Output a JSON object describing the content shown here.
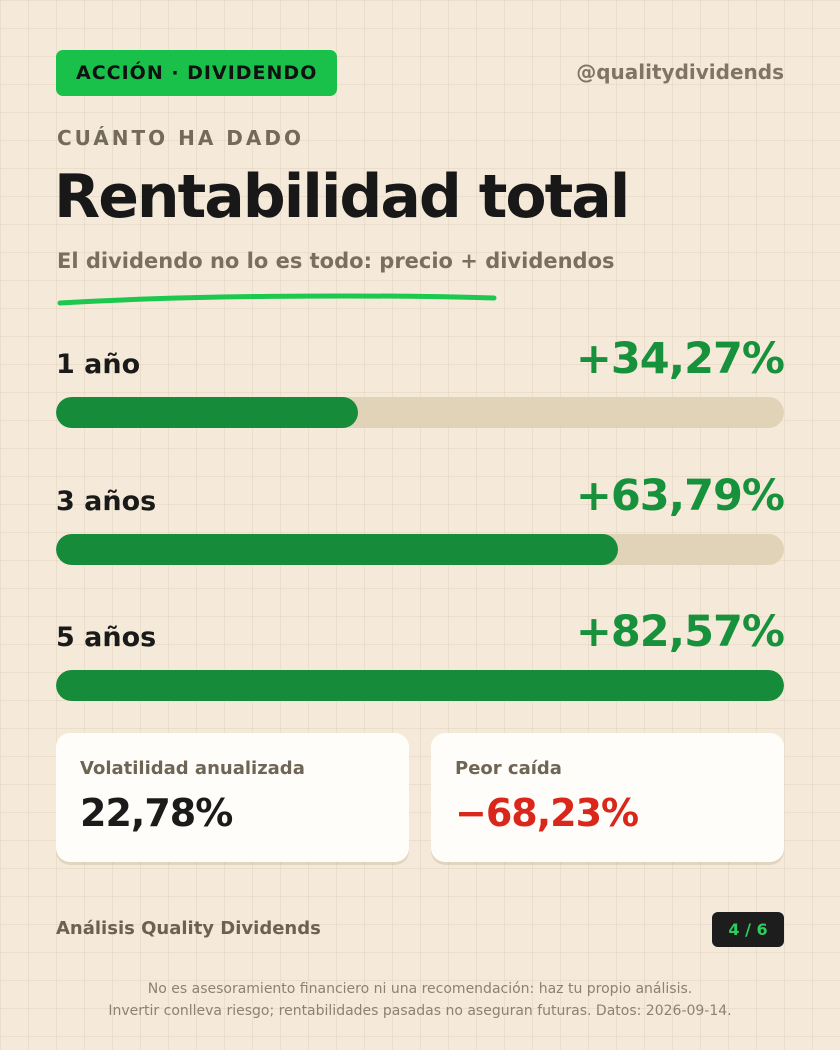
{
  "header": {
    "badge": "ACCIÓN · DIVIDENDO",
    "handle": "@qualitydividends",
    "accent_color": "#19c14b"
  },
  "kicker": "CUÁNTO HA DADO",
  "title": "Rentabilidad total",
  "subtitle": "El dividendo no lo es todo: precio + dividendos",
  "returns": [
    {
      "label": "1 año",
      "value": "+34,27%",
      "percent": 34.27
    },
    {
      "label": "3 años",
      "value": "+63,79%",
      "percent": 63.79
    },
    {
      "label": "5 años",
      "value": "+82,57%",
      "percent": 82.57
    }
  ],
  "returns_scale_max_percent": 82.57,
  "bar_color": "#168c3a",
  "track_color": "#e0d3b8",
  "metrics": [
    {
      "label": "Volatilidad anualizada",
      "value": "22,78%"
    },
    {
      "label": "Peor caída",
      "value": "−68,23%",
      "value_color": "#d9281b"
    }
  ],
  "footer": {
    "brand": "Análisis Quality Dividends",
    "page": "4 / 6",
    "disclaimer_line1": "No es asesoramiento financiero ni una recomendación: haz tu propio análisis.",
    "disclaimer_line2": "Invertir conlleva riesgo; rentabilidades pasadas no aseguran futuras. Datos: 2026-09-14."
  }
}
